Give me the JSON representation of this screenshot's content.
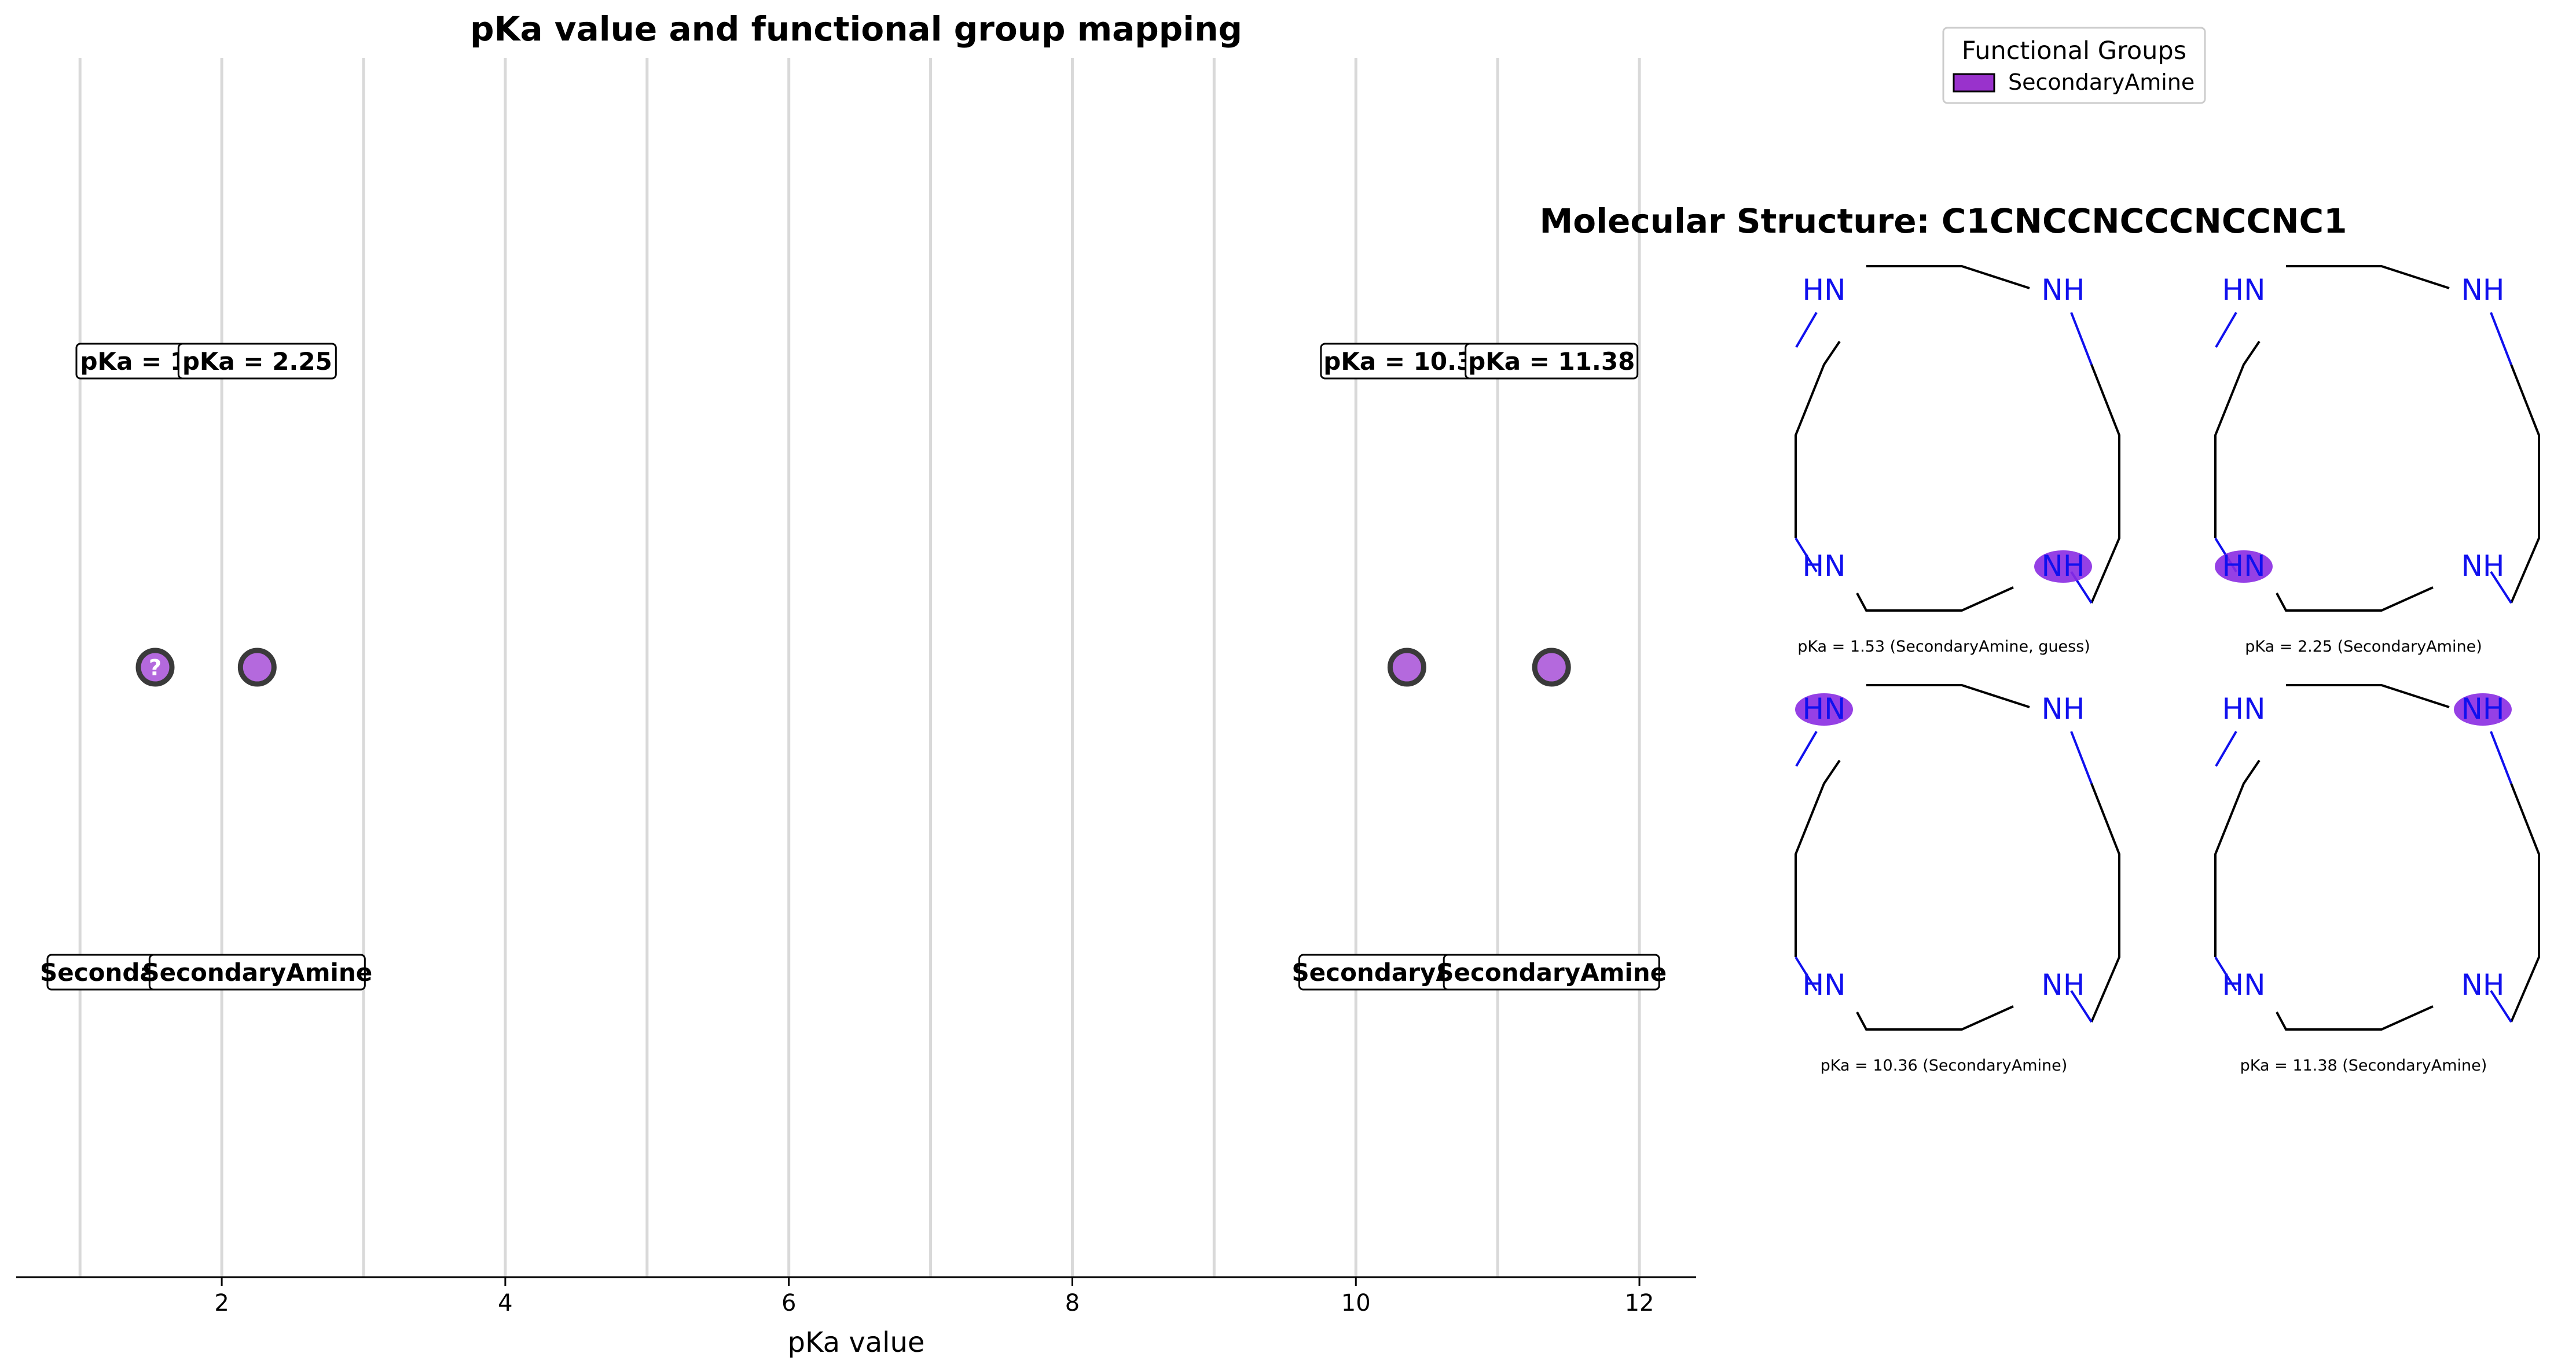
{
  "chart_data": {
    "type": "scatter",
    "title": "pKa value and functional group mapping",
    "xlabel": "pKa value",
    "xlim": [
      0.55,
      12.4
    ],
    "xticks": [
      2,
      4,
      6,
      8,
      10,
      12
    ],
    "xtick_labels": [
      "2",
      "4",
      "6",
      "8",
      "10",
      "12"
    ],
    "vertical_grid_at": [
      1,
      2,
      3,
      4,
      5,
      6,
      7,
      8,
      9,
      10,
      11,
      12
    ],
    "grid": "vertical",
    "points": [
      {
        "x": 1.53,
        "group": "SecondaryAmine",
        "guess": true,
        "label": "pKa = 1.53",
        "group_label": "SecondaryAmine",
        "marker_text": "?"
      },
      {
        "x": 2.25,
        "group": "SecondaryAmine",
        "guess": false,
        "label": "pKa = 2.25",
        "group_label": "SecondaryAmine",
        "marker_text": ""
      },
      {
        "x": 10.36,
        "group": "SecondaryAmine",
        "guess": false,
        "label": "pKa = 10.36",
        "group_label": "SecondaryAmine",
        "marker_text": ""
      },
      {
        "x": 11.38,
        "group": "SecondaryAmine",
        "guess": false,
        "label": "pKa = 11.38",
        "group_label": "SecondaryAmine",
        "marker_text": ""
      }
    ],
    "legend": {
      "title": "Functional Groups",
      "entries": [
        {
          "name": "SecondaryAmine",
          "color": "#9932CC"
        }
      ],
      "placement": "top-right"
    }
  },
  "structure_panel": {
    "title": "Molecular Structure: C1CNCCNCCCNCCNC1",
    "atom_labels": {
      "left": "HN",
      "right": "NH"
    },
    "molecules": [
      {
        "caption": "pKa = 1.53 (SecondaryAmine, guess)",
        "highlight": "bottom-right"
      },
      {
        "caption": "pKa = 2.25 (SecondaryAmine)",
        "highlight": "bottom-left"
      },
      {
        "caption": "pKa = 10.36 (SecondaryAmine)",
        "highlight": "top-left"
      },
      {
        "caption": "pKa = 11.38 (SecondaryAmine)",
        "highlight": "top-right"
      }
    ]
  },
  "colors": {
    "marker_fill": "#b469dd",
    "marker_edge": "#3a3a3a",
    "highlight": "#8a2be2",
    "nitrogen": "#1010ee",
    "bond": "#000000",
    "grid": "#d9d9d9"
  }
}
